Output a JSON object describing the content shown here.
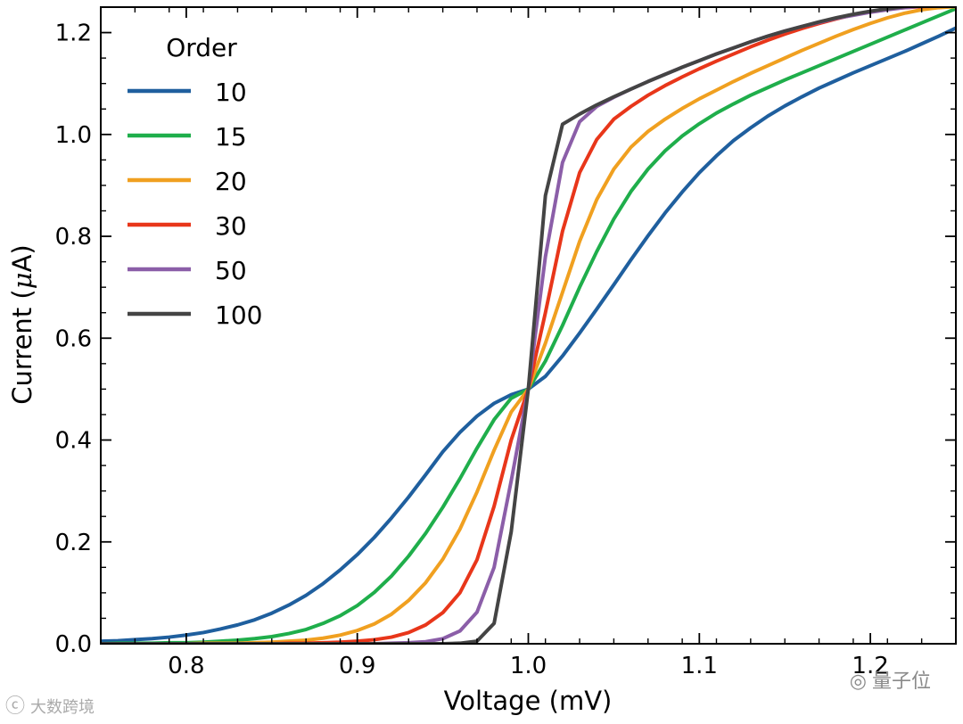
{
  "chart_data": {
    "type": "line",
    "title": "",
    "xlabel": "Voltage (mV)",
    "ylabel_main": "Current (",
    "ylabel_sym": "μ",
    "ylabel_unit": "A)",
    "xlim": [
      0.75,
      1.25
    ],
    "ylim": [
      0.0,
      1.25
    ],
    "x_ticks": [
      0.8,
      0.9,
      1.0,
      1.1,
      1.2
    ],
    "x_tick_labels": [
      "0.8",
      "0.9",
      "1.0",
      "1.1",
      "1.2"
    ],
    "y_ticks": [
      0.0,
      0.2,
      0.4,
      0.6,
      0.8,
      1.0,
      1.2
    ],
    "y_tick_labels": [
      "0.0",
      "0.2",
      "0.4",
      "0.6",
      "0.8",
      "1.0",
      "1.2"
    ],
    "legend_title": "Order",
    "legend_position": "top-left",
    "grid": false,
    "x": [
      0.75,
      0.76,
      0.77,
      0.78,
      0.79,
      0.8,
      0.81,
      0.82,
      0.83,
      0.84,
      0.85,
      0.86,
      0.87,
      0.88,
      0.89,
      0.9,
      0.91,
      0.92,
      0.93,
      0.94,
      0.95,
      0.96,
      0.97,
      0.98,
      0.99,
      1.0,
      1.01,
      1.02,
      1.03,
      1.04,
      1.05,
      1.06,
      1.07,
      1.08,
      1.09,
      1.1,
      1.11,
      1.12,
      1.13,
      1.14,
      1.15,
      1.16,
      1.17,
      1.18,
      1.19,
      1.2,
      1.21,
      1.22,
      1.23,
      1.24,
      1.25
    ],
    "series": [
      {
        "name": "10",
        "color": "#1f5f9e",
        "values": [
          0.005,
          0.006,
          0.008,
          0.01,
          0.013,
          0.017,
          0.022,
          0.029,
          0.037,
          0.047,
          0.06,
          0.076,
          0.095,
          0.118,
          0.145,
          0.175,
          0.209,
          0.247,
          0.288,
          0.332,
          0.377,
          0.415,
          0.447,
          0.472,
          0.489,
          0.5,
          0.525,
          0.565,
          0.61,
          0.657,
          0.705,
          0.754,
          0.801,
          0.846,
          0.887,
          0.925,
          0.958,
          0.988,
          1.013,
          1.036,
          1.056,
          1.074,
          1.091,
          1.106,
          1.121,
          1.135,
          1.149,
          1.163,
          1.178,
          1.193,
          1.209
        ]
      },
      {
        "name": "15",
        "color": "#1fae4b",
        "values": [
          0.0,
          0.001,
          0.001,
          0.001,
          0.002,
          0.002,
          0.003,
          0.005,
          0.007,
          0.01,
          0.014,
          0.02,
          0.028,
          0.04,
          0.055,
          0.075,
          0.101,
          0.133,
          0.172,
          0.217,
          0.268,
          0.324,
          0.384,
          0.44,
          0.482,
          0.5,
          0.555,
          0.625,
          0.7,
          0.77,
          0.834,
          0.888,
          0.932,
          0.968,
          0.997,
          1.021,
          1.042,
          1.06,
          1.077,
          1.092,
          1.107,
          1.121,
          1.135,
          1.149,
          1.163,
          1.177,
          1.191,
          1.205,
          1.219,
          1.233,
          1.247
        ]
      },
      {
        "name": "20",
        "color": "#f0a020",
        "values": [
          0.0,
          0.0,
          0.0,
          0.0,
          0.0,
          0.0,
          0.001,
          0.001,
          0.001,
          0.002,
          0.003,
          0.005,
          0.007,
          0.011,
          0.017,
          0.026,
          0.039,
          0.058,
          0.085,
          0.12,
          0.166,
          0.225,
          0.298,
          0.38,
          0.455,
          0.5,
          0.59,
          0.69,
          0.79,
          0.872,
          0.932,
          0.975,
          1.006,
          1.03,
          1.051,
          1.07,
          1.087,
          1.104,
          1.12,
          1.135,
          1.15,
          1.165,
          1.179,
          1.193,
          1.206,
          1.218,
          1.229,
          1.238,
          1.245,
          1.249,
          1.251
        ]
      },
      {
        "name": "30",
        "color": "#e8361a",
        "values": [
          0.0,
          0.0,
          0.0,
          0.0,
          0.0,
          0.0,
          0.0,
          0.0,
          0.0,
          0.0,
          0.0,
          0.001,
          0.001,
          0.002,
          0.003,
          0.005,
          0.008,
          0.013,
          0.022,
          0.037,
          0.061,
          0.1,
          0.165,
          0.27,
          0.4,
          0.5,
          0.65,
          0.81,
          0.925,
          0.99,
          1.03,
          1.055,
          1.077,
          1.096,
          1.113,
          1.129,
          1.144,
          1.158,
          1.172,
          1.185,
          1.197,
          1.208,
          1.218,
          1.227,
          1.235,
          1.241,
          1.246,
          1.249,
          1.251,
          1.252,
          1.253
        ]
      },
      {
        "name": "50",
        "color": "#8b5ea8",
        "values": [
          0.0,
          0.0,
          0.0,
          0.0,
          0.0,
          0.0,
          0.0,
          0.0,
          0.0,
          0.0,
          0.0,
          0.0,
          0.0,
          0.0,
          0.0,
          0.0,
          0.0,
          0.001,
          0.002,
          0.004,
          0.01,
          0.025,
          0.062,
          0.15,
          0.32,
          0.5,
          0.76,
          0.945,
          1.025,
          1.055,
          1.073,
          1.089,
          1.104,
          1.118,
          1.132,
          1.145,
          1.158,
          1.17,
          1.182,
          1.193,
          1.203,
          1.212,
          1.22,
          1.228,
          1.234,
          1.24,
          1.245,
          1.249,
          1.252,
          1.254,
          1.255
        ]
      },
      {
        "name": "100",
        "color": "#444444",
        "values": [
          0.0,
          0.0,
          0.0,
          0.0,
          0.0,
          0.0,
          0.0,
          0.0,
          0.0,
          0.0,
          0.0,
          0.0,
          0.0,
          0.0,
          0.0,
          0.0,
          0.0,
          0.0,
          0.0,
          0.0,
          0.0,
          0.001,
          0.005,
          0.04,
          0.22,
          0.5,
          0.88,
          1.02,
          1.04,
          1.058,
          1.074,
          1.089,
          1.104,
          1.118,
          1.132,
          1.145,
          1.158,
          1.17,
          1.182,
          1.193,
          1.203,
          1.212,
          1.221,
          1.229,
          1.236,
          1.242,
          1.247,
          1.251,
          1.254,
          1.256,
          1.257
        ]
      }
    ]
  },
  "watermarks": {
    "left_icon": "ⓒ",
    "left_text": "大数跨境",
    "right_icon": "◎",
    "right_text": "量子位"
  }
}
